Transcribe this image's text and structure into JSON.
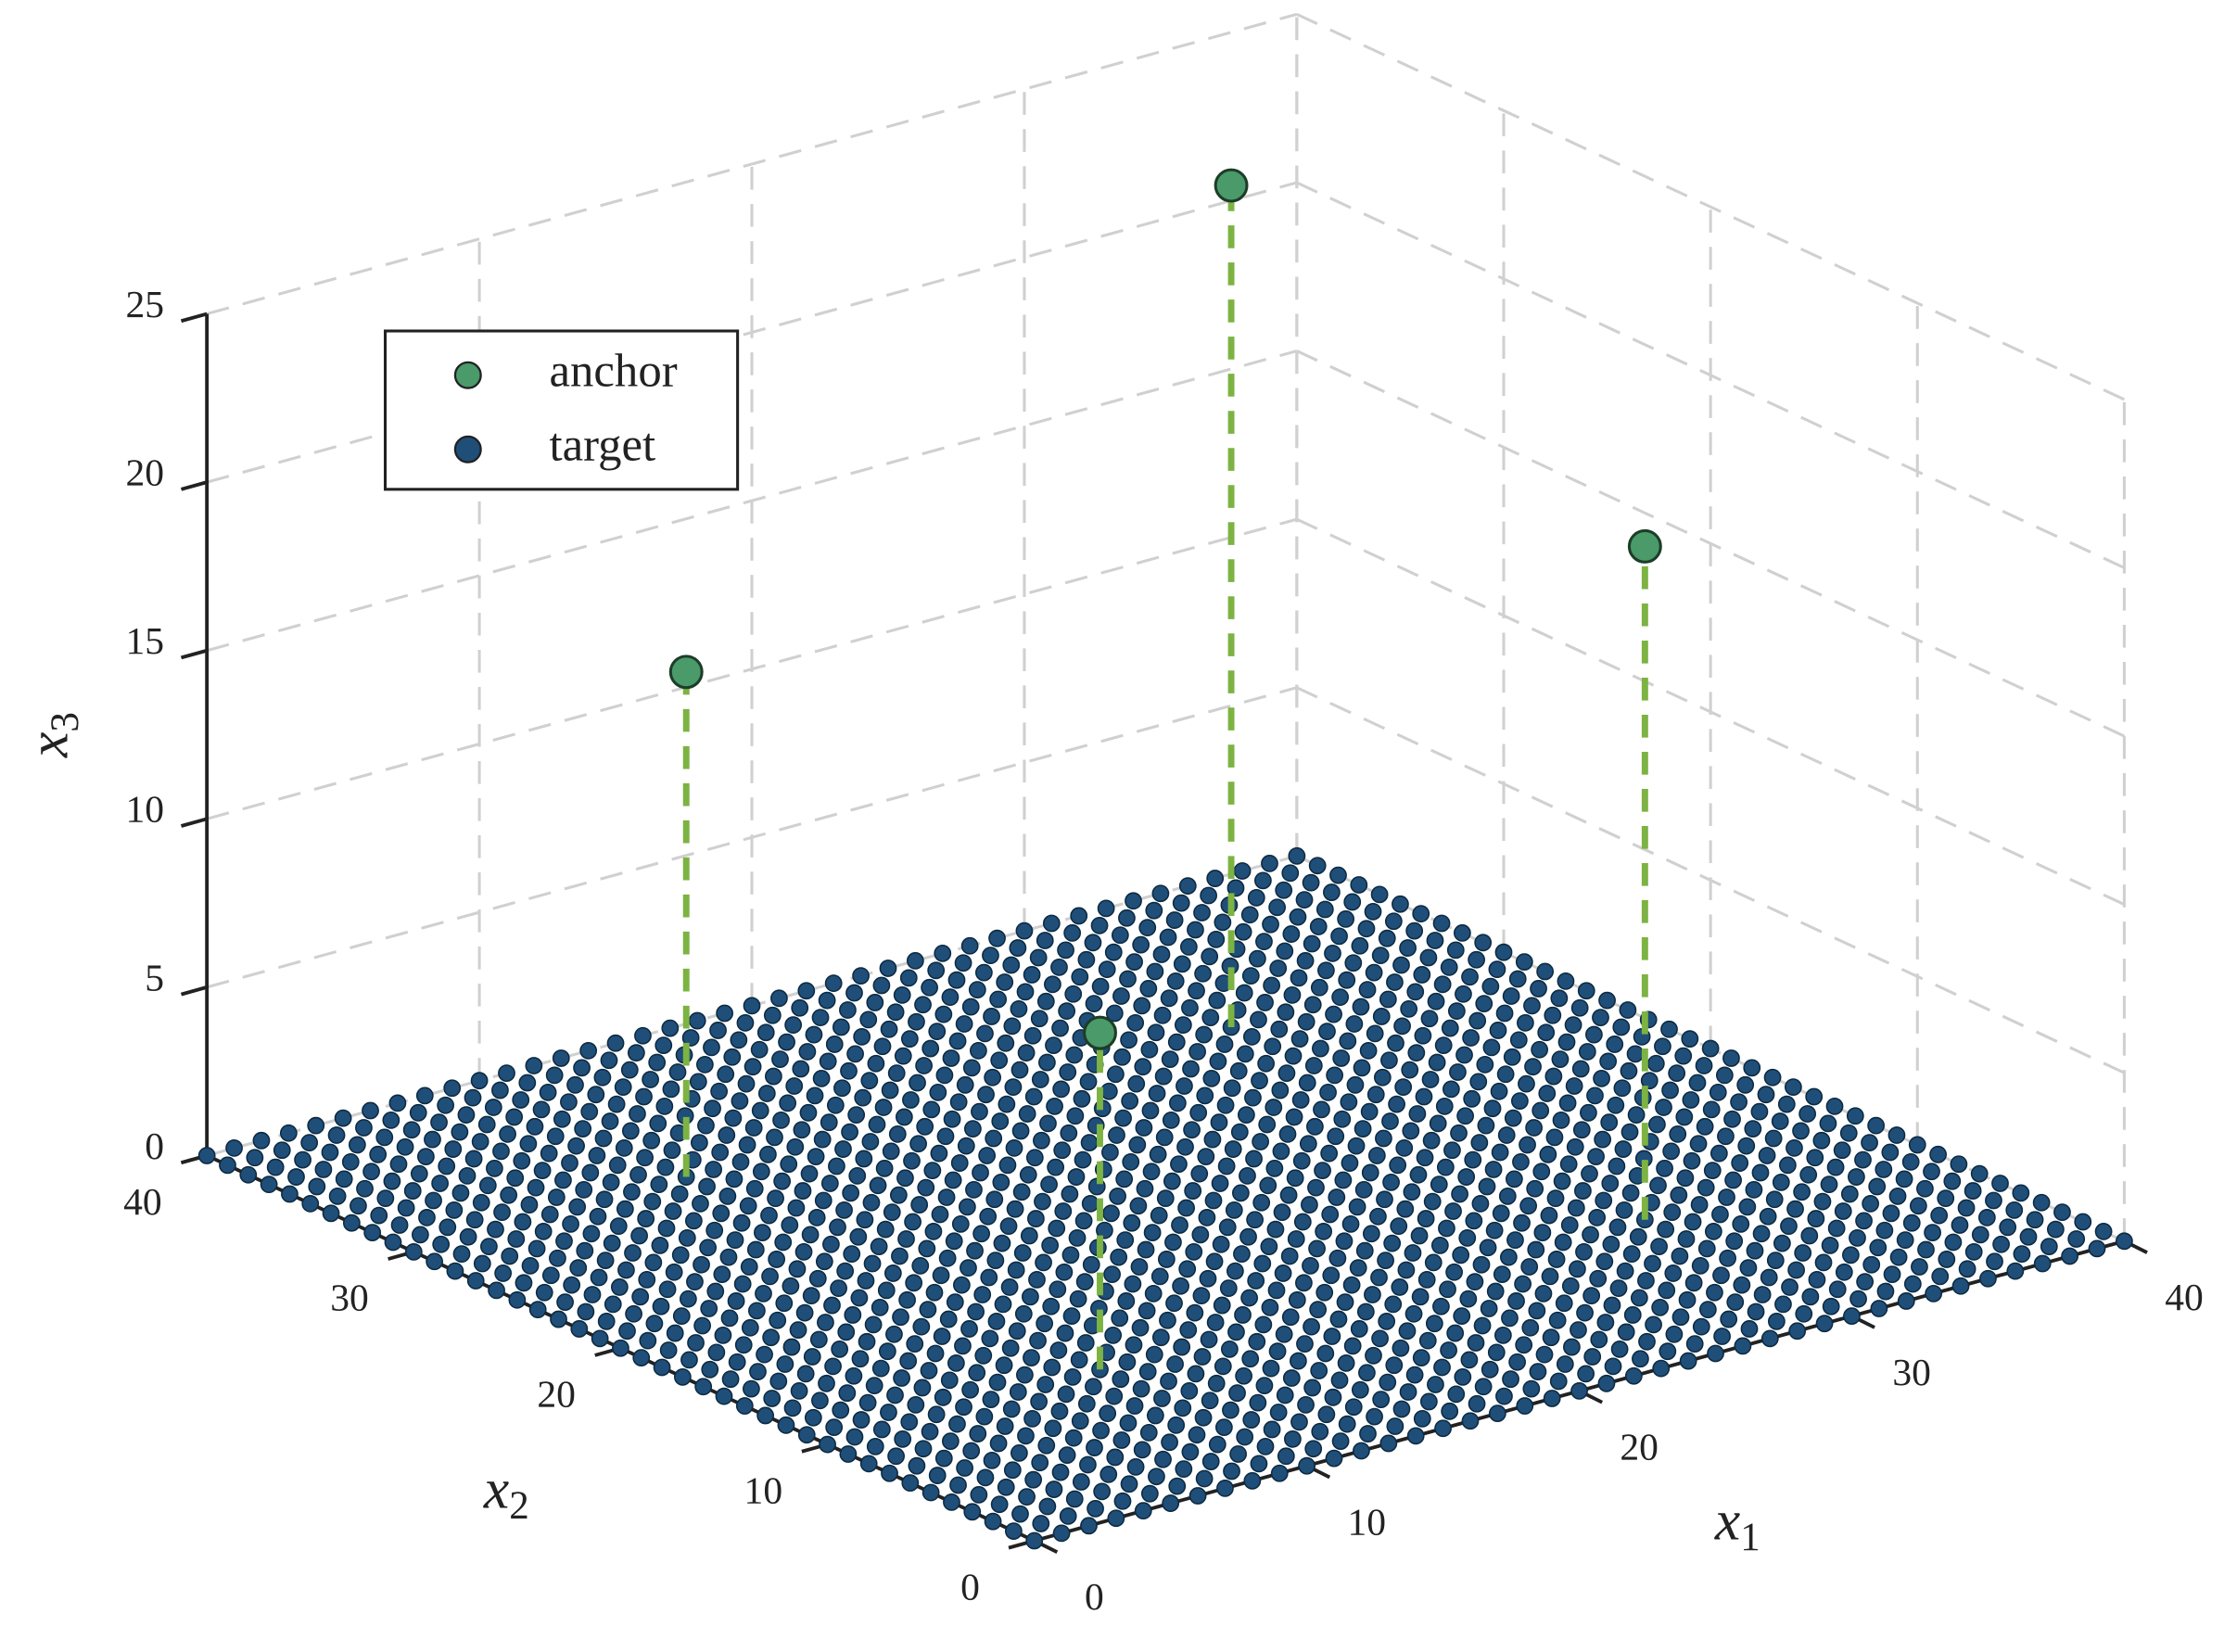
{
  "chart_data": {
    "type": "scatter3d",
    "xlabel": "x1",
    "ylabel": "x2",
    "zlabel": "x3",
    "xlim": [
      0,
      40
    ],
    "ylim": [
      0,
      40
    ],
    "zlim": [
      0,
      25
    ],
    "xticks": [
      0,
      10,
      20,
      30,
      40
    ],
    "yticks": [
      0,
      10,
      20,
      30,
      40
    ],
    "zticks": [
      0,
      5,
      10,
      15,
      20,
      25
    ],
    "grid": true,
    "legend": "upper left",
    "series": [
      {
        "name": "anchor",
        "color": "#4a9a6a",
        "stem_color": "#7cb342",
        "x": [
          10,
          30,
          30,
          10
        ],
        "y": [
          30,
          30,
          10,
          10
        ],
        "z": [
          15,
          25,
          20,
          10
        ]
      },
      {
        "name": "target",
        "color": "#1f4e79",
        "grid_x": [
          0,
          1,
          2,
          3,
          4,
          5,
          6,
          7,
          8,
          9,
          10,
          11,
          12,
          13,
          14,
          15,
          16,
          17,
          18,
          19,
          20,
          21,
          22,
          23,
          24,
          25,
          26,
          27,
          28,
          29,
          30,
          31,
          32,
          33,
          34,
          35,
          36,
          37,
          38,
          39,
          40
        ],
        "grid_y": [
          0,
          1,
          2,
          3,
          4,
          5,
          6,
          7,
          8,
          9,
          10,
          11,
          12,
          13,
          14,
          15,
          16,
          17,
          18,
          19,
          20,
          21,
          22,
          23,
          24,
          25,
          26,
          27,
          28,
          29,
          30,
          31,
          32,
          33,
          34,
          35,
          36,
          37,
          38,
          39,
          40
        ],
        "z": 0
      }
    ]
  }
}
